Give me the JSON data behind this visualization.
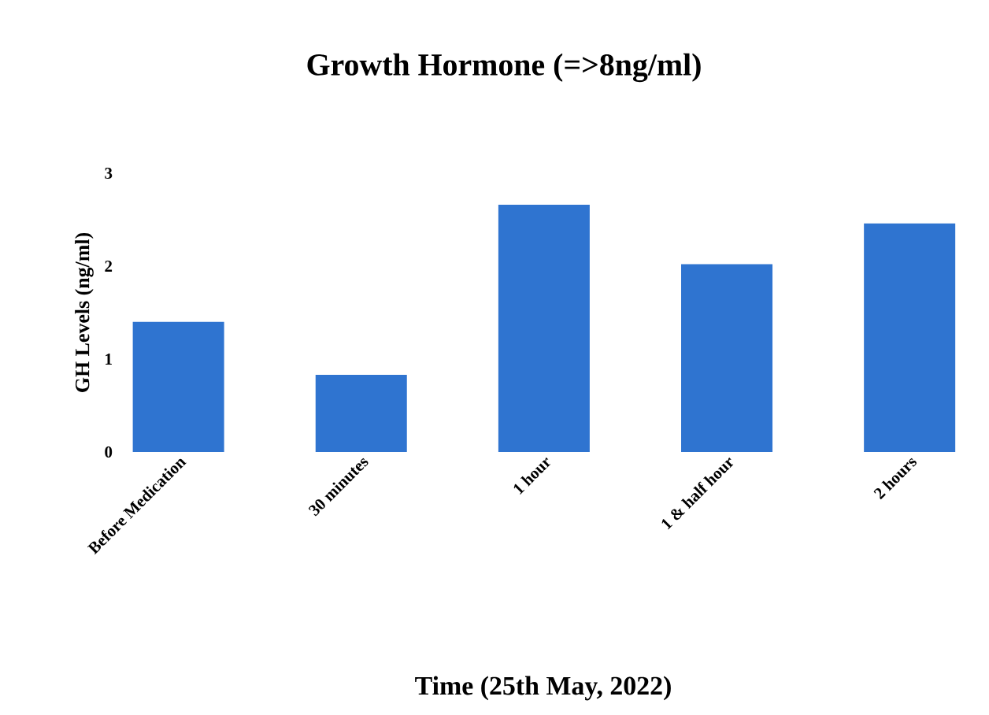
{
  "chart_data": {
    "type": "bar",
    "title": "Growth Hormone (=>8ng/ml)",
    "xlabel": "Time (25th May, 2022)",
    "ylabel": "GH Levels (ng/ml)",
    "categories": [
      "Before Medication",
      "30 minutes",
      "1 hour",
      "1 & half hour",
      "2 hours"
    ],
    "values": [
      1.4,
      0.83,
      2.66,
      2.02,
      2.46
    ],
    "color": "#2f74d0",
    "ylim": [
      0,
      3
    ],
    "yticks": [
      0,
      1,
      2,
      3
    ]
  }
}
